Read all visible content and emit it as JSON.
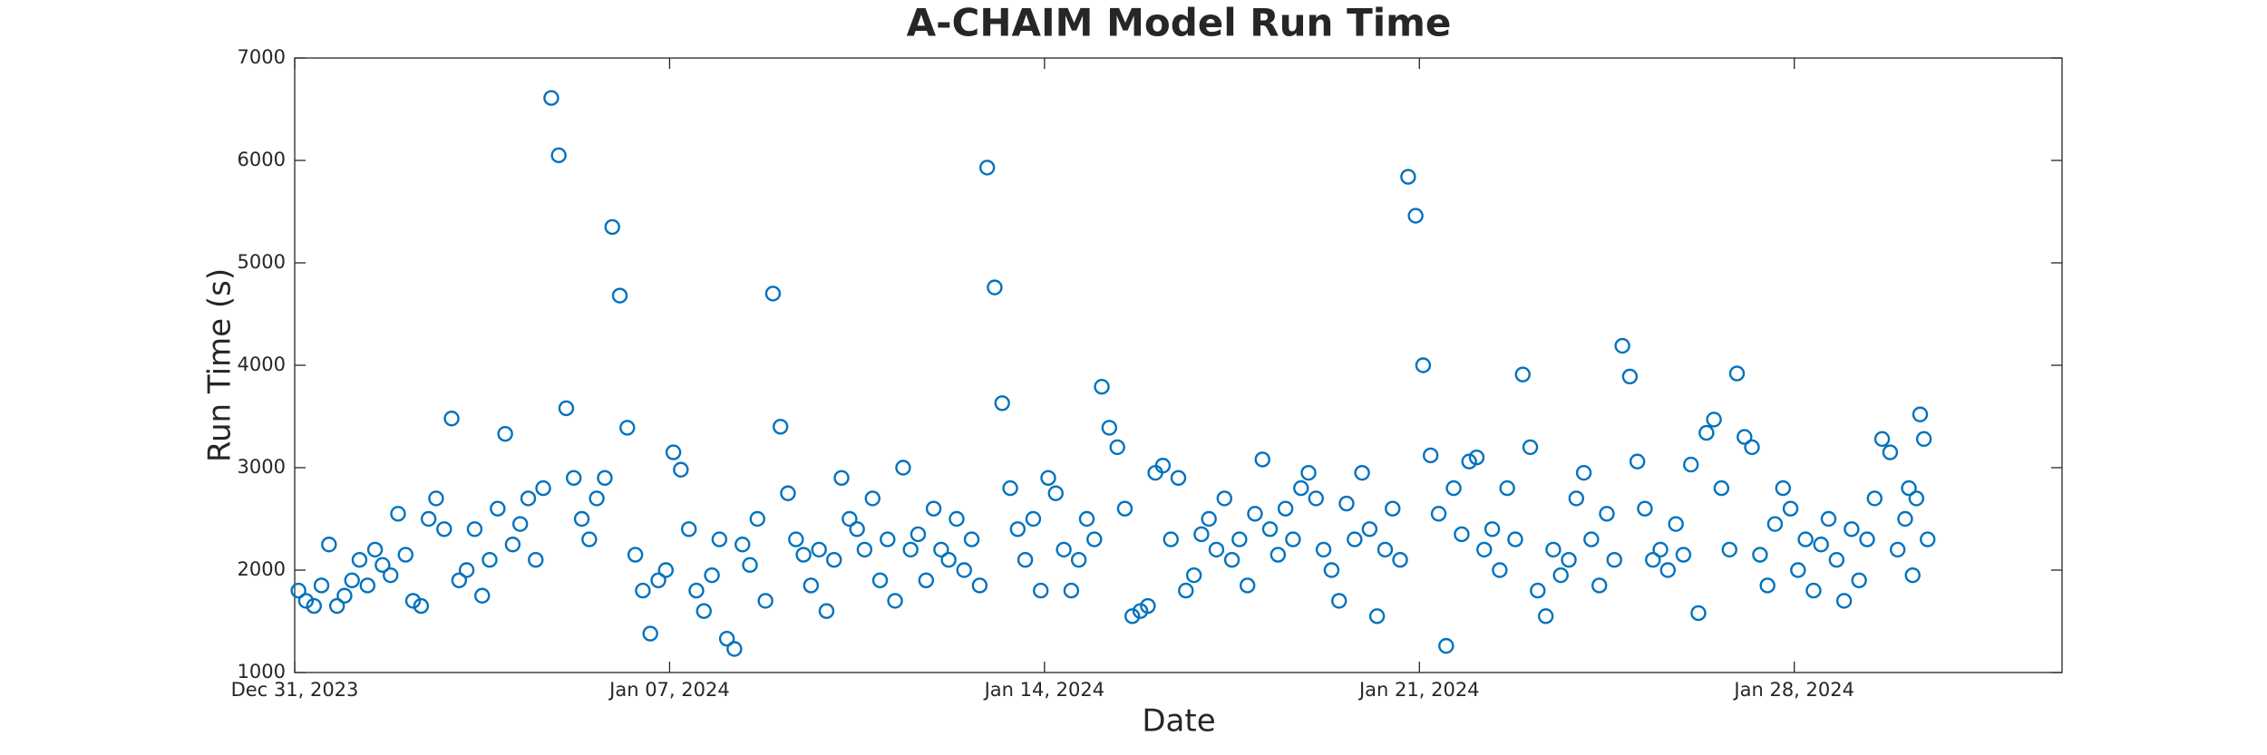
{
  "chart_data": {
    "type": "scatter",
    "title": "A-CHAIM Model Run Time",
    "x_label": "Date",
    "y_label": "Run Time (s)",
    "xlim": [
      0,
      33
    ],
    "ylim": [
      1000,
      7000
    ],
    "xticks": [
      {
        "value": 0,
        "label": "Dec 31, 2023"
      },
      {
        "value": 7,
        "label": "Jan 07, 2024"
      },
      {
        "value": 14,
        "label": "Jan 14, 2024"
      },
      {
        "value": 21,
        "label": "Jan 21, 2024"
      },
      {
        "value": 28,
        "label": "Jan 28, 2024"
      }
    ],
    "yticks": [
      1000,
      2000,
      3000,
      4000,
      5000,
      6000,
      7000
    ],
    "color": "#0072bd",
    "x": [
      0.07,
      0.21,
      0.36,
      0.5,
      0.64,
      0.79,
      0.93,
      1.07,
      1.21,
      1.36,
      1.5,
      1.64,
      1.79,
      1.93,
      2.07,
      2.21,
      2.36,
      2.5,
      2.64,
      2.79,
      2.93,
      3.07,
      3.21,
      3.36,
      3.5,
      3.64,
      3.79,
      3.93,
      4.07,
      4.21,
      4.36,
      4.5,
      4.64,
      4.79,
      4.93,
      5.07,
      5.21,
      5.36,
      5.5,
      5.64,
      5.79,
      5.93,
      6.07,
      6.21,
      6.36,
      6.5,
      6.64,
      6.79,
      6.93,
      7.07,
      7.21,
      7.36,
      7.5,
      7.64,
      7.79,
      7.93,
      8.07,
      8.21,
      8.36,
      8.5,
      8.64,
      8.79,
      8.93,
      9.07,
      9.21,
      9.36,
      9.5,
      9.64,
      9.79,
      9.93,
      10.07,
      10.21,
      10.36,
      10.5,
      10.64,
      10.79,
      10.93,
      11.07,
      11.21,
      11.36,
      11.5,
      11.64,
      11.79,
      11.93,
      12.07,
      12.21,
      12.36,
      12.5,
      12.64,
      12.79,
      12.93,
      13.07,
      13.21,
      13.36,
      13.5,
      13.64,
      13.79,
      13.93,
      14.07,
      14.21,
      14.36,
      14.5,
      14.64,
      14.79,
      14.93,
      15.07,
      15.21,
      15.36,
      15.5,
      15.64,
      15.79,
      15.93,
      16.07,
      16.21,
      16.36,
      16.5,
      16.64,
      16.79,
      16.93,
      17.07,
      17.21,
      17.36,
      17.5,
      17.64,
      17.79,
      17.93,
      18.07,
      18.21,
      18.36,
      18.5,
      18.64,
      18.79,
      18.93,
      19.07,
      19.21,
      19.36,
      19.5,
      19.64,
      19.79,
      19.93,
      20.07,
      20.21,
      20.36,
      20.5,
      20.64,
      20.79,
      20.93,
      21.07,
      21.21,
      21.36,
      21.5,
      21.64,
      21.79,
      21.93,
      22.07,
      22.21,
      22.36,
      22.5,
      22.64,
      22.79,
      22.93,
      23.07,
      23.21,
      23.36,
      23.5,
      23.64,
      23.79,
      23.93,
      24.07,
      24.21,
      24.36,
      24.5,
      24.64,
      24.79,
      24.93,
      25.07,
      25.21,
      25.36,
      25.5,
      25.64,
      25.79,
      25.93,
      26.07,
      26.21,
      26.36,
      26.5,
      26.64,
      26.79,
      26.93,
      27.07,
      27.21,
      27.36,
      27.5,
      27.64,
      27.79,
      27.93,
      28.07,
      28.21,
      28.36,
      28.5,
      28.64,
      28.79,
      28.93,
      29.07,
      29.21,
      29.36,
      29.5,
      29.64,
      29.79,
      29.93,
      30.07,
      30.14,
      30.21,
      30.28,
      30.35,
      30.42,
      30.49
    ],
    "values": [
      1800,
      1700,
      1650,
      1850,
      2250,
      1650,
      1750,
      1900,
      2100,
      1850,
      2200,
      2050,
      1950,
      2550,
      2150,
      1700,
      1650,
      2500,
      2700,
      2400,
      3480,
      1900,
      2000,
      2400,
      1750,
      2100,
      2600,
      3330,
      2250,
      2450,
      2700,
      2100,
      2800,
      6610,
      6050,
      3580,
      2900,
      2500,
      2300,
      2700,
      2900,
      5350,
      4680,
      3390,
      2150,
      1800,
      1380,
      1900,
      2000,
      3150,
      2980,
      2400,
      1800,
      1600,
      1950,
      2300,
      1330,
      1230,
      2250,
      2050,
      2500,
      1700,
      4700,
      3400,
      2750,
      2300,
      2150,
      1850,
      2200,
      1600,
      2100,
      2900,
      2500,
      2400,
      2200,
      2700,
      1900,
      2300,
      1700,
      3000,
      2200,
      2350,
      1900,
      2600,
      2200,
      2100,
      2500,
      2000,
      2300,
      1850,
      5930,
      4760,
      3630,
      2800,
      2400,
      2100,
      2500,
      1800,
      2900,
      2750,
      2200,
      1800,
      2100,
      2500,
      2300,
      3790,
      3390,
      3200,
      2600,
      1550,
      1600,
      1650,
      2950,
      3020,
      2300,
      2900,
      1800,
      1950,
      2350,
      2500,
      2200,
      2700,
      2100,
      2300,
      1850,
      2550,
      3080,
      2400,
      2150,
      2600,
      2300,
      2800,
      2950,
      2700,
      2200,
      2000,
      1700,
      2650,
      2300,
      2950,
      2400,
      1550,
      2200,
      2600,
      2100,
      5840,
      5460,
      4000,
      3120,
      2550,
      1260,
      2800,
      2350,
      3060,
      3100,
      2200,
      2400,
      2000,
      2800,
      2300,
      3910,
      3200,
      1800,
      1550,
      2200,
      1950,
      2100,
      2700,
      2950,
      2300,
      1850,
      2550,
      2100,
      4190,
      3890,
      3060,
      2600,
      2100,
      2200,
      2000,
      2450,
      2150,
      3030,
      1580,
      3340,
      3470,
      2800,
      2200,
      3920,
      3300,
      3200,
      2150,
      1850,
      2450,
      2800,
      2600,
      2000,
      2300,
      1800,
      2250,
      2500,
      2100,
      1700,
      2400,
      1900,
      2300,
      2700,
      3280,
      3150,
      2200,
      2500,
      2800,
      1950,
      2700,
      3520,
      3280,
      2300
    ]
  }
}
